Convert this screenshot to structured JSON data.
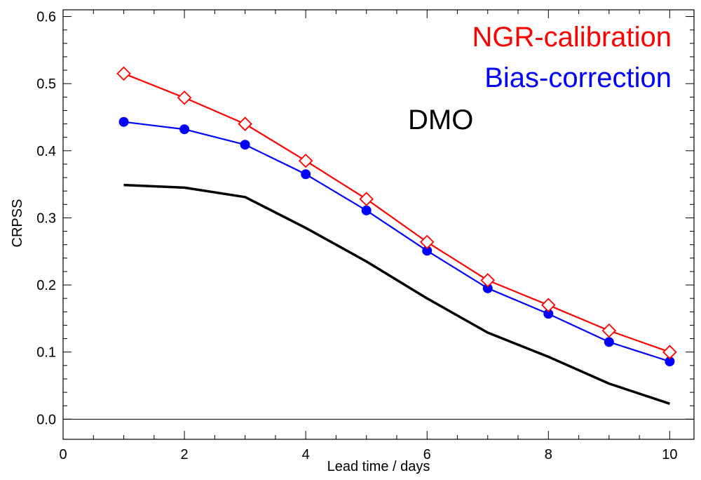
{
  "chart_data": {
    "type": "line",
    "xlabel": "Lead time / days",
    "ylabel": "CRPSS",
    "xlim": [
      0,
      10.4
    ],
    "ylim": [
      -0.03,
      0.61
    ],
    "x_ticks": [
      "0",
      "2",
      "4",
      "6",
      "8",
      "10"
    ],
    "y_ticks": [
      "0.0",
      "0.1",
      "0.2",
      "0.3",
      "0.4",
      "0.5",
      "0.6"
    ],
    "zero_line": true,
    "grid": false,
    "legend_position": "top-right",
    "x": [
      1,
      2,
      3,
      4,
      5,
      6,
      7,
      8,
      9,
      10
    ],
    "series": [
      {
        "name": "NGR-calibration",
        "color": "#ff0000",
        "marker": "diamond-open",
        "values": [
          0.515,
          0.479,
          0.44,
          0.385,
          0.328,
          0.264,
          0.207,
          0.17,
          0.132,
          0.1
        ]
      },
      {
        "name": "Bias-correction",
        "color": "#0000ff",
        "marker": "circle-filled",
        "values": [
          0.443,
          0.432,
          0.409,
          0.365,
          0.311,
          0.251,
          0.195,
          0.157,
          0.115,
          0.086
        ]
      },
      {
        "name": "DMO",
        "color": "#000000",
        "marker": "none",
        "values": [
          0.349,
          0.345,
          0.331,
          0.285,
          0.235,
          0.18,
          0.129,
          0.093,
          0.053,
          0.023
        ]
      }
    ]
  }
}
